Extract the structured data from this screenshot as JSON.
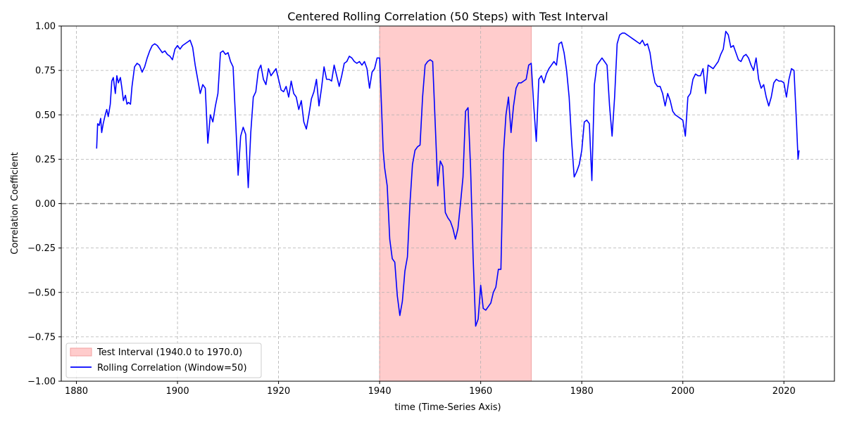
{
  "chart_data": {
    "type": "line",
    "title": "Centered Rolling Correlation (50 Steps) with Test Interval",
    "xlabel": "time (Time-Series Axis)",
    "ylabel": "Correlation Coefficient",
    "xlim": [
      1877,
      2030
    ],
    "ylim": [
      -1.0,
      1.0
    ],
    "xticks": [
      1880,
      1900,
      1920,
      1940,
      1960,
      1980,
      2000,
      2020
    ],
    "yticks": [
      -1.0,
      -0.75,
      -0.5,
      -0.25,
      0.0,
      0.25,
      0.5,
      0.75,
      1.0
    ],
    "xtick_labels": [
      "1880",
      "1900",
      "1920",
      "1940",
      "1960",
      "1980",
      "2000",
      "2020"
    ],
    "ytick_labels": [
      "−1.00",
      "−0.75",
      "−0.50",
      "−0.25",
      "0.00",
      "0.25",
      "0.50",
      "0.75",
      "1.00"
    ],
    "grid": true,
    "zero_line": 0.0,
    "legend_position": "lower-left",
    "test_interval": {
      "start": 1940.0,
      "end": 1970.0,
      "label": "Test Interval (1940.0 to 1970.0)",
      "color": "#ffcccc"
    },
    "series": [
      {
        "name": "Rolling Correlation (Window=50)",
        "color": "#0000ff",
        "x": [
          1884.0,
          1884.2,
          1884.5,
          1884.8,
          1885.0,
          1885.3,
          1885.7,
          1886.0,
          1886.3,
          1886.7,
          1887.0,
          1887.3,
          1887.7,
          1888.0,
          1888.3,
          1888.7,
          1889.0,
          1889.3,
          1889.7,
          1890.0,
          1890.3,
          1890.7,
          1891.0,
          1891.5,
          1892.0,
          1892.5,
          1893.0,
          1893.5,
          1894.0,
          1894.5,
          1895.0,
          1895.5,
          1896.0,
          1896.5,
          1897.0,
          1897.5,
          1898.0,
          1898.5,
          1899.0,
          1899.5,
          1900.0,
          1900.5,
          1901.0,
          1901.5,
          1902.0,
          1902.5,
          1903.0,
          1903.5,
          1904.0,
          1904.5,
          1905.0,
          1905.5,
          1906.0,
          1906.5,
          1907.0,
          1907.5,
          1908.0,
          1908.5,
          1909.0,
          1909.5,
          1910.0,
          1910.5,
          1911.0,
          1911.5,
          1912.0,
          1912.5,
          1913.0,
          1913.5,
          1914.0,
          1914.5,
          1915.0,
          1915.5,
          1916.0,
          1916.5,
          1917.0,
          1917.5,
          1918.0,
          1918.5,
          1919.0,
          1919.5,
          1920.0,
          1920.5,
          1921.0,
          1921.5,
          1922.0,
          1922.5,
          1923.0,
          1923.5,
          1924.0,
          1924.5,
          1925.0,
          1925.5,
          1926.0,
          1926.5,
          1927.0,
          1927.5,
          1928.0,
          1928.5,
          1929.0,
          1929.5,
          1930.0,
          1930.5,
          1931.0,
          1931.5,
          1932.0,
          1932.5,
          1933.0,
          1933.5,
          1934.0,
          1934.5,
          1935.0,
          1935.5,
          1936.0,
          1936.5,
          1937.0,
          1937.5,
          1938.0,
          1938.5,
          1939.0,
          1939.5,
          1940.0,
          1940.3,
          1940.7,
          1941.0,
          1941.5,
          1942.0,
          1942.5,
          1943.0,
          1943.5,
          1944.0,
          1944.5,
          1945.0,
          1945.5,
          1946.0,
          1946.5,
          1947.0,
          1947.5,
          1948.0,
          1948.5,
          1949.0,
          1949.5,
          1950.0,
          1950.5,
          1951.0,
          1951.5,
          1952.0,
          1952.5,
          1953.0,
          1953.5,
          1954.0,
          1954.5,
          1955.0,
          1955.5,
          1956.0,
          1956.5,
          1957.0,
          1957.5,
          1958.0,
          1958.5,
          1959.0,
          1959.5,
          1960.0,
          1960.5,
          1961.0,
          1961.5,
          1962.0,
          1962.5,
          1963.0,
          1963.5,
          1964.0,
          1964.5,
          1965.0,
          1965.5,
          1966.0,
          1966.5,
          1967.0,
          1967.5,
          1968.0,
          1968.5,
          1969.0,
          1969.5,
          1970.0,
          1970.5,
          1971.0,
          1971.5,
          1972.0,
          1972.5,
          1973.0,
          1973.5,
          1974.0,
          1974.5,
          1975.0,
          1975.5,
          1976.0,
          1976.5,
          1977.0,
          1977.5,
          1978.0,
          1978.5,
          1979.0,
          1979.5,
          1980.0,
          1980.5,
          1981.0,
          1981.5,
          1982.0,
          1982.5,
          1983.0,
          1983.5,
          1984.0,
          1984.5,
          1985.0,
          1985.5,
          1986.0,
          1986.5,
          1987.0,
          1987.5,
          1988.0,
          1988.5,
          1989.0,
          1989.5,
          1990.0,
          1990.5,
          1991.0,
          1991.5,
          1992.0,
          1992.5,
          1993.0,
          1993.5,
          1994.0,
          1994.5,
          1995.0,
          1995.5,
          1996.0,
          1996.5,
          1997.0,
          1997.5,
          1998.0,
          1998.5,
          1999.0,
          1999.5,
          2000.0,
          2000.5,
          2001.0,
          2001.5,
          2002.0,
          2002.5,
          2003.0,
          2003.5,
          2004.0,
          2004.5,
          2005.0,
          2005.5,
          2006.0,
          2006.5,
          2007.0,
          2007.5,
          2008.0,
          2008.5,
          2009.0,
          2009.5,
          2010.0,
          2010.5,
          2011.0,
          2011.5,
          2012.0,
          2012.5,
          2013.0,
          2013.5,
          2014.0,
          2014.5,
          2015.0,
          2015.5,
          2016.0,
          2016.5,
          2017.0,
          2017.5,
          2018.0,
          2018.5,
          2019.0,
          2019.5,
          2020.0,
          2020.5,
          2021.0,
          2021.5,
          2022.0,
          2022.5,
          2022.8,
          2023.0
        ],
        "values": [
          0.31,
          0.45,
          0.44,
          0.48,
          0.4,
          0.45,
          0.5,
          0.53,
          0.49,
          0.56,
          0.69,
          0.71,
          0.62,
          0.72,
          0.68,
          0.71,
          0.65,
          0.58,
          0.61,
          0.56,
          0.57,
          0.56,
          0.66,
          0.77,
          0.79,
          0.78,
          0.74,
          0.77,
          0.82,
          0.86,
          0.89,
          0.9,
          0.89,
          0.87,
          0.85,
          0.86,
          0.84,
          0.83,
          0.81,
          0.87,
          0.89,
          0.87,
          0.89,
          0.9,
          0.91,
          0.92,
          0.88,
          0.78,
          0.7,
          0.62,
          0.67,
          0.65,
          0.34,
          0.5,
          0.46,
          0.55,
          0.62,
          0.85,
          0.86,
          0.84,
          0.85,
          0.8,
          0.77,
          0.47,
          0.16,
          0.38,
          0.43,
          0.39,
          0.09,
          0.4,
          0.6,
          0.63,
          0.75,
          0.78,
          0.7,
          0.67,
          0.76,
          0.72,
          0.74,
          0.76,
          0.7,
          0.64,
          0.63,
          0.66,
          0.6,
          0.69,
          0.62,
          0.6,
          0.53,
          0.58,
          0.46,
          0.42,
          0.5,
          0.59,
          0.63,
          0.7,
          0.55,
          0.65,
          0.77,
          0.7,
          0.7,
          0.69,
          0.78,
          0.72,
          0.66,
          0.72,
          0.79,
          0.8,
          0.83,
          0.82,
          0.8,
          0.79,
          0.8,
          0.78,
          0.8,
          0.76,
          0.65,
          0.74,
          0.76,
          0.82,
          0.82,
          0.6,
          0.3,
          0.2,
          0.1,
          -0.2,
          -0.31,
          -0.33,
          -0.52,
          -0.63,
          -0.55,
          -0.38,
          -0.3,
          -0.0,
          0.22,
          0.3,
          0.32,
          0.33,
          0.6,
          0.78,
          0.8,
          0.81,
          0.8,
          0.45,
          0.1,
          0.24,
          0.21,
          -0.05,
          -0.08,
          -0.1,
          -0.14,
          -0.2,
          -0.14,
          0.0,
          0.15,
          0.52,
          0.54,
          0.2,
          -0.3,
          -0.69,
          -0.65,
          -0.46,
          -0.59,
          -0.6,
          -0.58,
          -0.56,
          -0.5,
          -0.47,
          -0.37,
          -0.37,
          0.28,
          0.5,
          0.6,
          0.4,
          0.55,
          0.65,
          0.68,
          0.68,
          0.69,
          0.7,
          0.78,
          0.79,
          0.55,
          0.35,
          0.7,
          0.72,
          0.68,
          0.73,
          0.76,
          0.78,
          0.8,
          0.78,
          0.9,
          0.91,
          0.85,
          0.75,
          0.6,
          0.35,
          0.15,
          0.18,
          0.22,
          0.3,
          0.46,
          0.47,
          0.45,
          0.13,
          0.67,
          0.78,
          0.8,
          0.82,
          0.8,
          0.78,
          0.55,
          0.38,
          0.6,
          0.9,
          0.95,
          0.96,
          0.96,
          0.95,
          0.94,
          0.93,
          0.92,
          0.91,
          0.9,
          0.92,
          0.89,
          0.9,
          0.85,
          0.75,
          0.68,
          0.66,
          0.66,
          0.62,
          0.55,
          0.62,
          0.58,
          0.52,
          0.5,
          0.49,
          0.48,
          0.47,
          0.38,
          0.6,
          0.62,
          0.7,
          0.73,
          0.72,
          0.72,
          0.76,
          0.62,
          0.78,
          0.77,
          0.76,
          0.78,
          0.8,
          0.84,
          0.87,
          0.97,
          0.95,
          0.88,
          0.89,
          0.85,
          0.81,
          0.8,
          0.83,
          0.84,
          0.82,
          0.78,
          0.75,
          0.82,
          0.7,
          0.65,
          0.67,
          0.6,
          0.55,
          0.6,
          0.68,
          0.7,
          0.69,
          0.69,
          0.68,
          0.6,
          0.7,
          0.76,
          0.75,
          0.45,
          0.25,
          0.3
        ]
      }
    ]
  }
}
